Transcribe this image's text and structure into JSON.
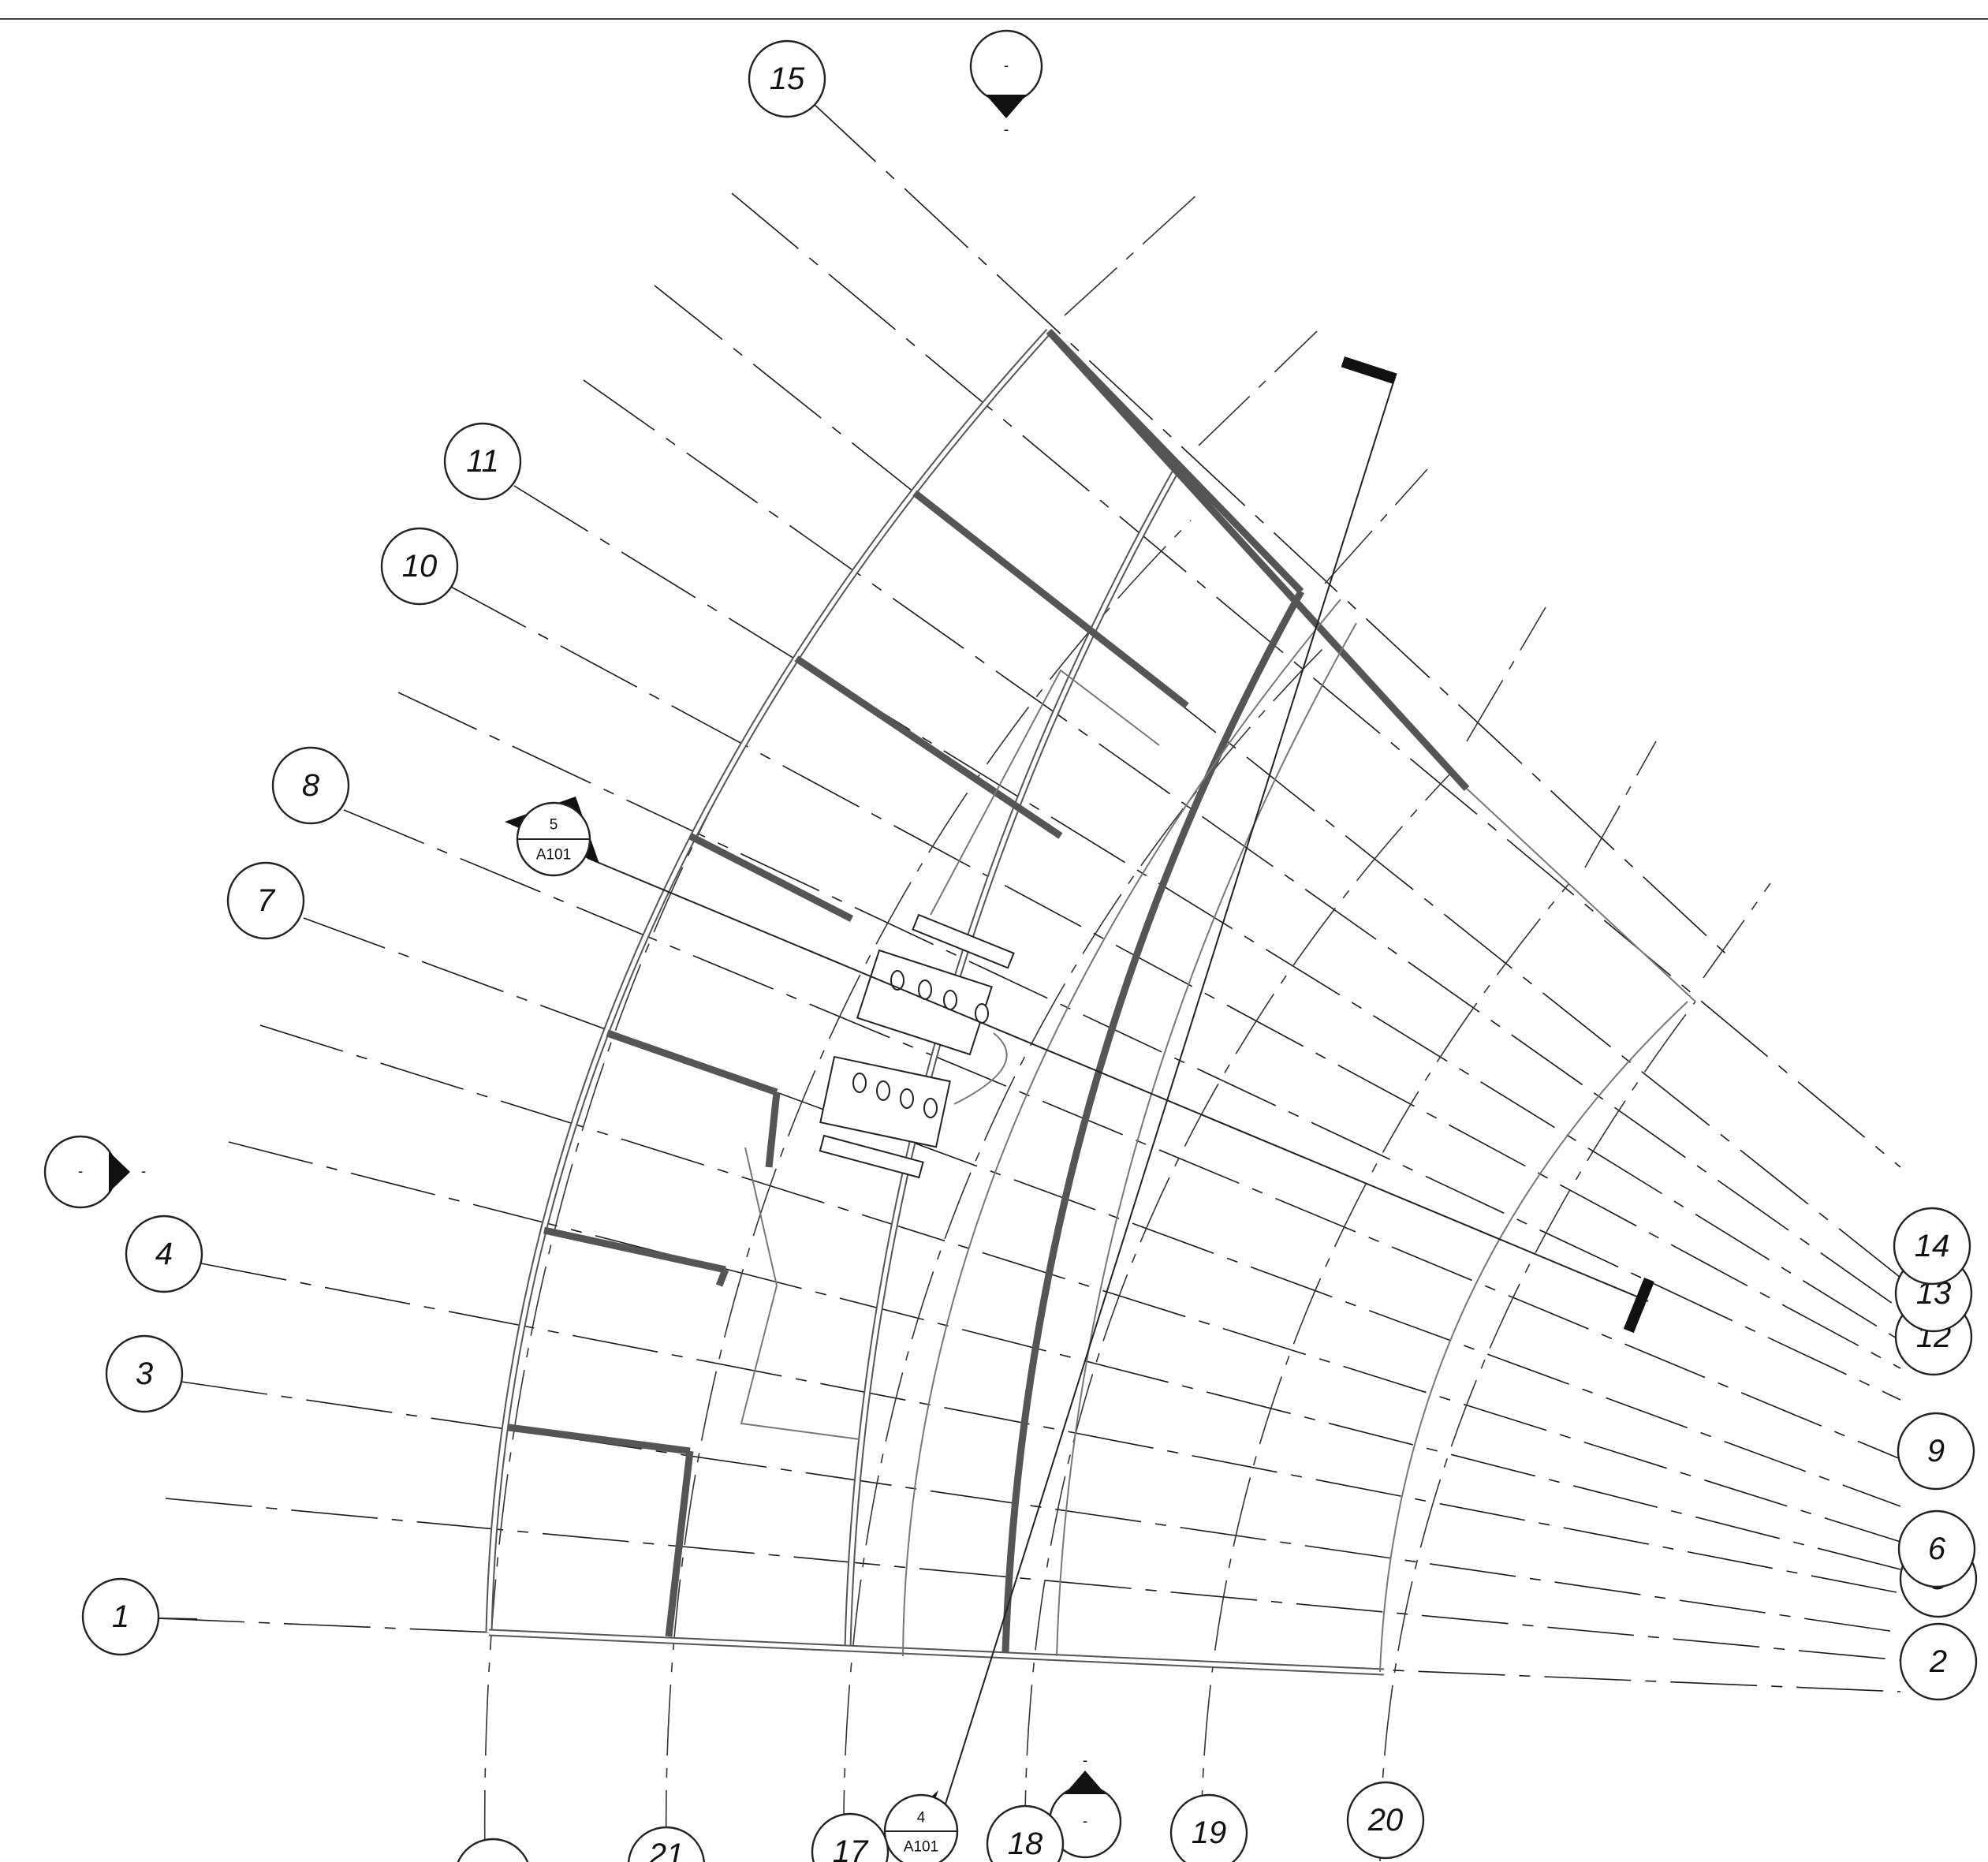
{
  "grid_bubbles": [
    {
      "id": "1",
      "label": "1"
    },
    {
      "id": "2",
      "label": "2"
    },
    {
      "id": "3",
      "label": "3"
    },
    {
      "id": "4",
      "label": "4"
    },
    {
      "id": "5",
      "label": "5"
    },
    {
      "id": "6",
      "label": "6"
    },
    {
      "id": "7",
      "label": "7"
    },
    {
      "id": "8",
      "label": "8"
    },
    {
      "id": "9",
      "label": "9"
    },
    {
      "id": "10",
      "label": "10"
    },
    {
      "id": "11",
      "label": "11"
    },
    {
      "id": "12",
      "label": "12"
    },
    {
      "id": "13",
      "label": "13"
    },
    {
      "id": "14",
      "label": "14"
    },
    {
      "id": "15",
      "label": "15"
    },
    {
      "id": "17",
      "label": "17"
    },
    {
      "id": "18",
      "label": "18"
    },
    {
      "id": "19",
      "label": "19"
    },
    {
      "id": "20",
      "label": "20"
    },
    {
      "id": "21",
      "label": "21"
    }
  ],
  "section_tags": [
    {
      "number": "5",
      "sheet": "A101"
    },
    {
      "number": "4",
      "sheet": "A101"
    }
  ],
  "elevation_markers": [
    {
      "label": "-",
      "sub": "-"
    },
    {
      "label": "-",
      "sub": "-"
    },
    {
      "label": "-",
      "sub": "-"
    }
  ]
}
